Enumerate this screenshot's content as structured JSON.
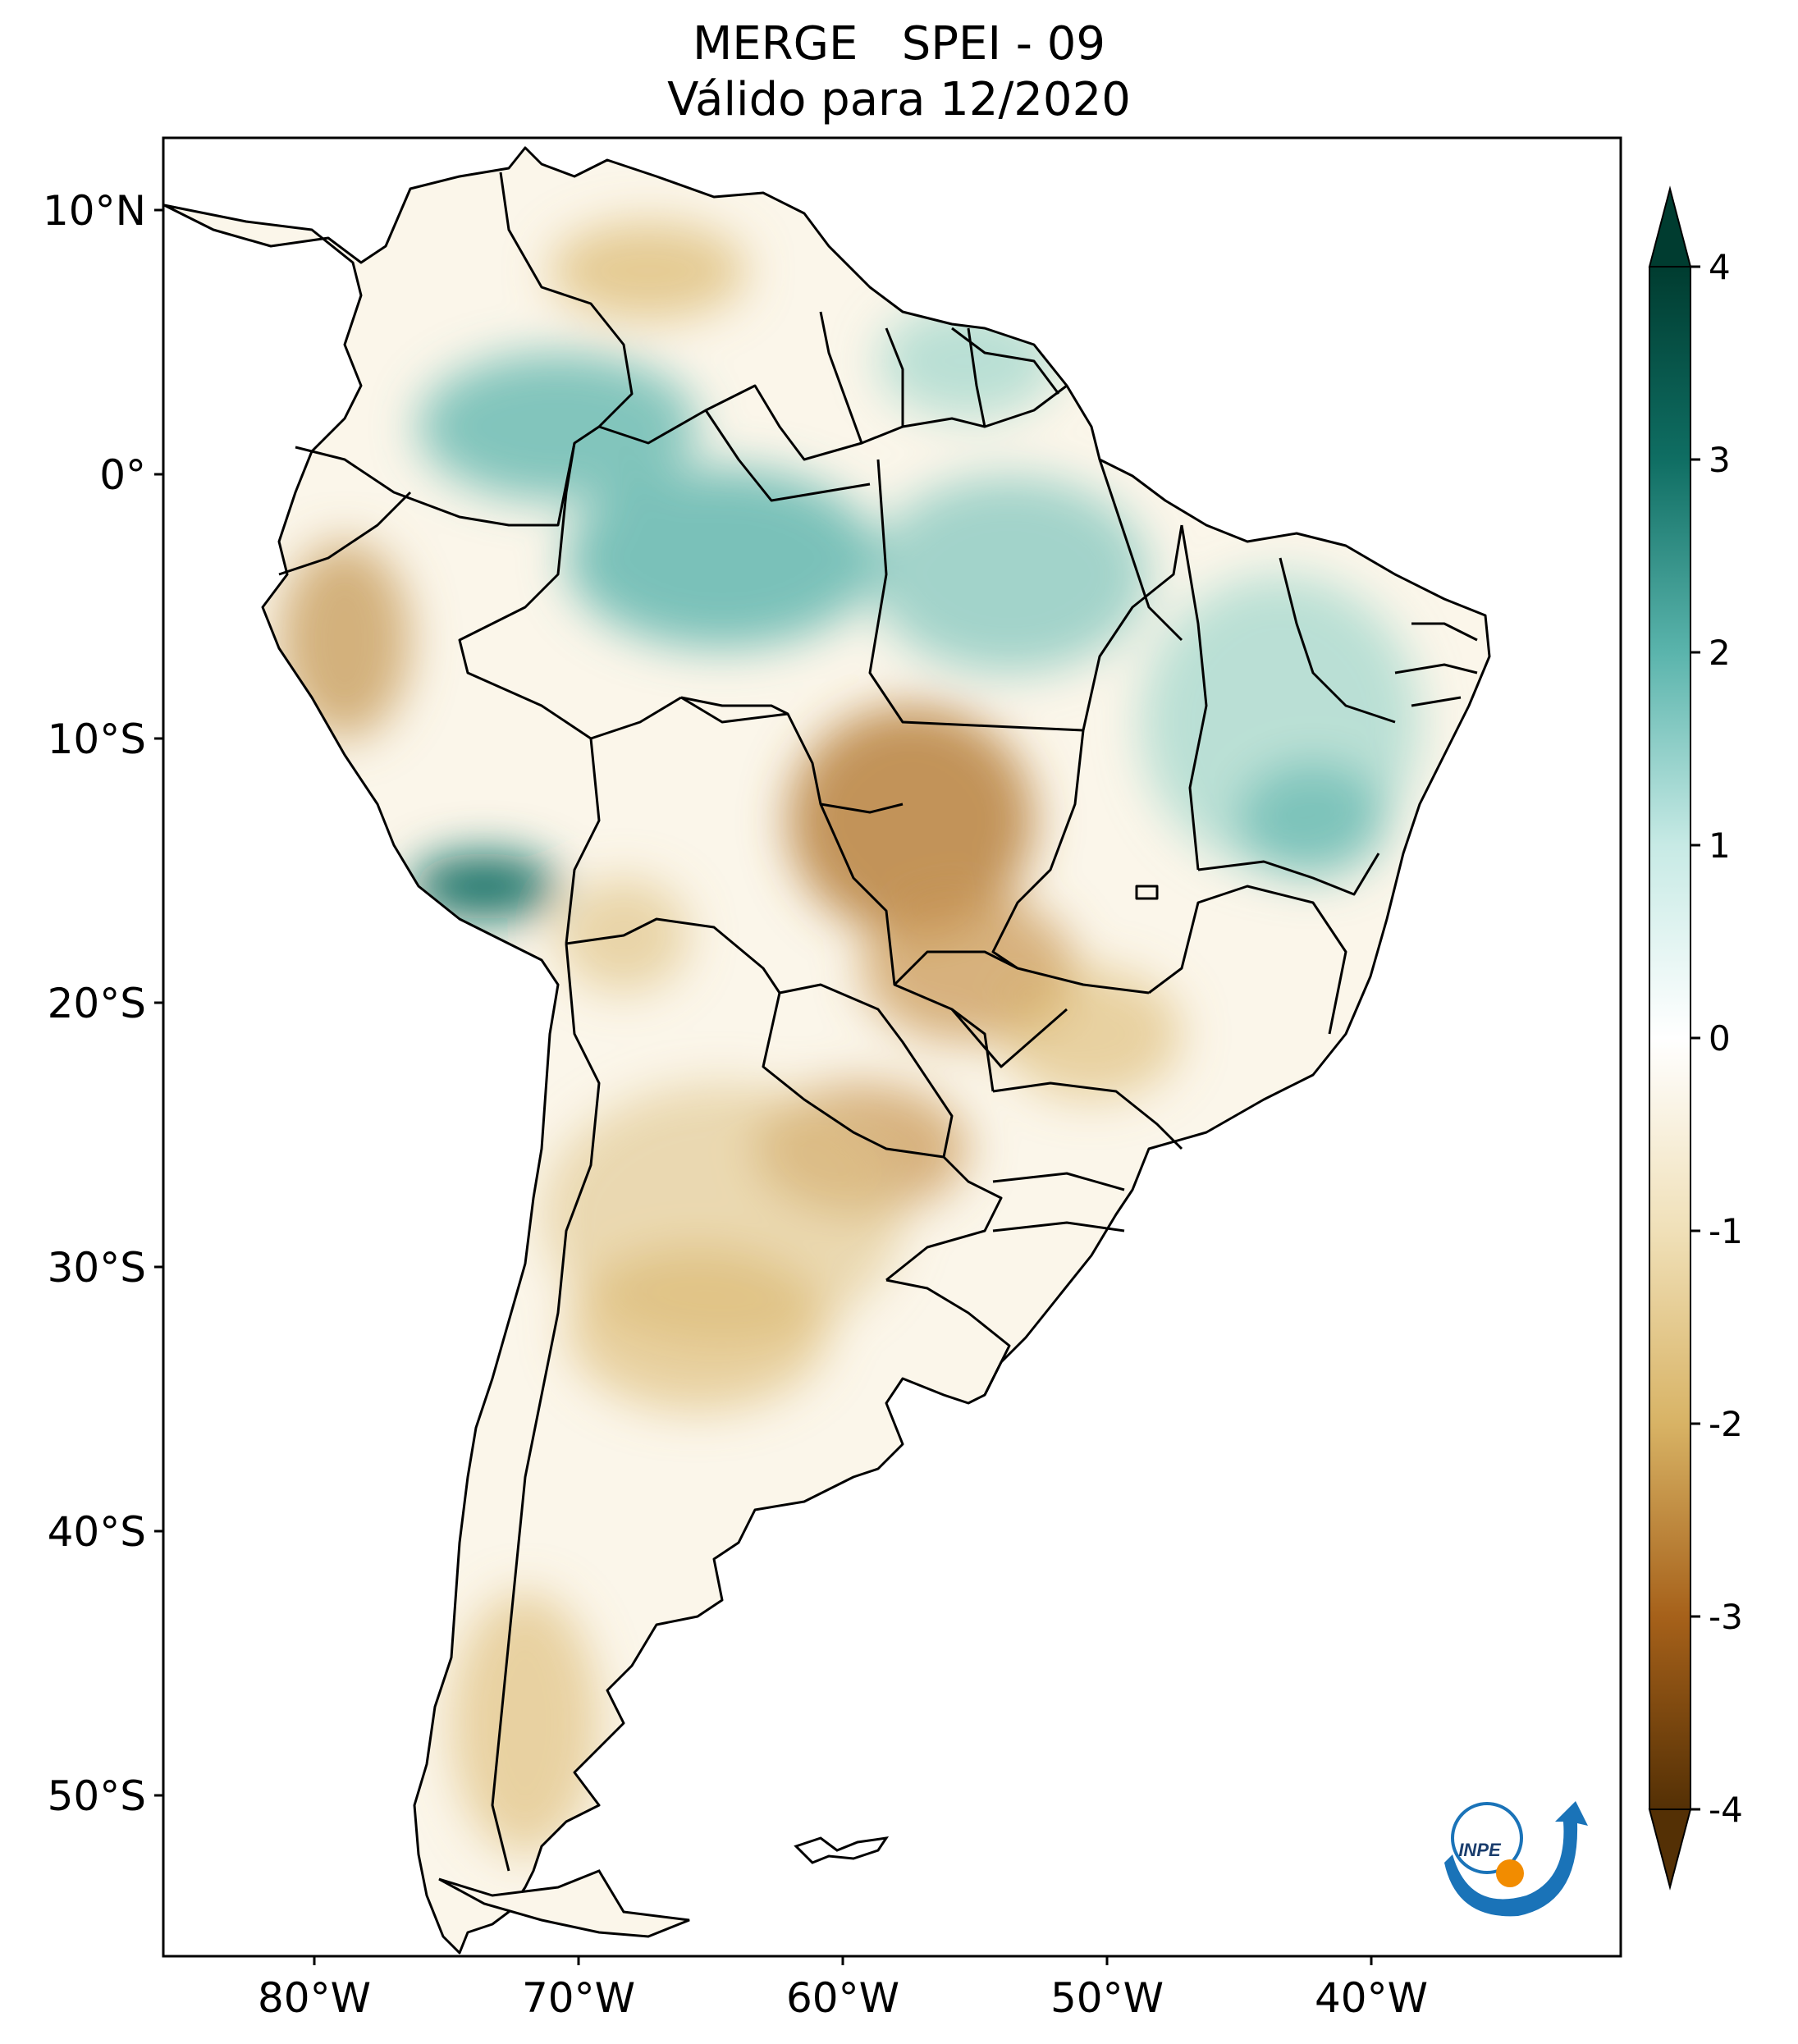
{
  "title": {
    "line1": "MERGE   SPEI - 09",
    "line2": "Válido para 12/2020"
  },
  "map": {
    "region": "South America",
    "lat_ticks": [
      "10°N",
      "0°",
      "10°S",
      "20°S",
      "30°S",
      "40°S",
      "50°S"
    ],
    "lon_ticks": [
      "80°W",
      "70°W",
      "60°W",
      "50°W",
      "40°W"
    ]
  },
  "colorbar": {
    "ticks": [
      "4",
      "3",
      "2",
      "1",
      "0",
      "-1",
      "-2",
      "-3",
      "-4"
    ],
    "colors": {
      "v4": "#003c30",
      "v3": "#0f6e63",
      "v2": "#5ab4ac",
      "v1": "#c7eae5",
      "v0": "#ffffff",
      "vm1": "#f0e0b8",
      "vm2": "#d8b365",
      "vm3": "#a6611a",
      "vm4": "#543005"
    }
  },
  "logo": {
    "text": "INPE",
    "colors": {
      "blue": "#1a73b8",
      "orange": "#f28c00"
    }
  }
}
